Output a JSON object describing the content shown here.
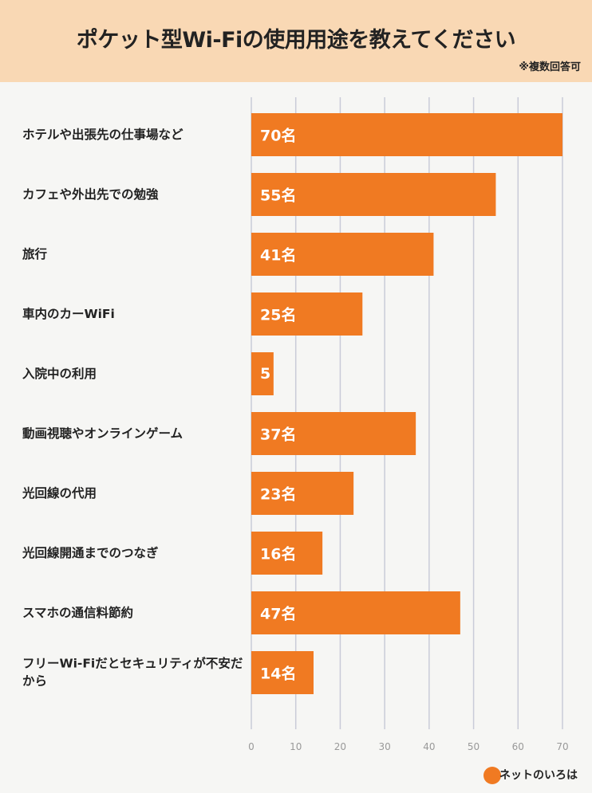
{
  "chart_data": {
    "type": "barh",
    "title": "ポケット型Wi-Fiの使用用途を教えてください",
    "subtitle": "※複数回答可",
    "categories": [
      "ホテルや出張先の仕事場など",
      "カフェや外出先での勉強",
      "旅行",
      "車内のカーWiFi",
      "入院中の利用",
      "動画視聴やオンラインゲーム",
      "光回線の代用",
      "光回線開通までのつなぎ",
      "スマホの通信料節約",
      "フリーWi-Fiだとセキュリティが不安だから"
    ],
    "values": [
      70,
      55,
      41,
      25,
      5,
      37,
      23,
      16,
      47,
      14
    ],
    "value_labels": [
      "70名",
      "55名",
      "41名",
      "25名",
      "5",
      "37名",
      "23名",
      "16名",
      "47名",
      "14名"
    ],
    "color": "#f07a22",
    "xlim": [
      0,
      70
    ],
    "xticks": [
      0,
      10,
      20,
      30,
      40,
      50,
      60,
      70
    ],
    "grid": true
  },
  "logo": "ネットのいろは"
}
